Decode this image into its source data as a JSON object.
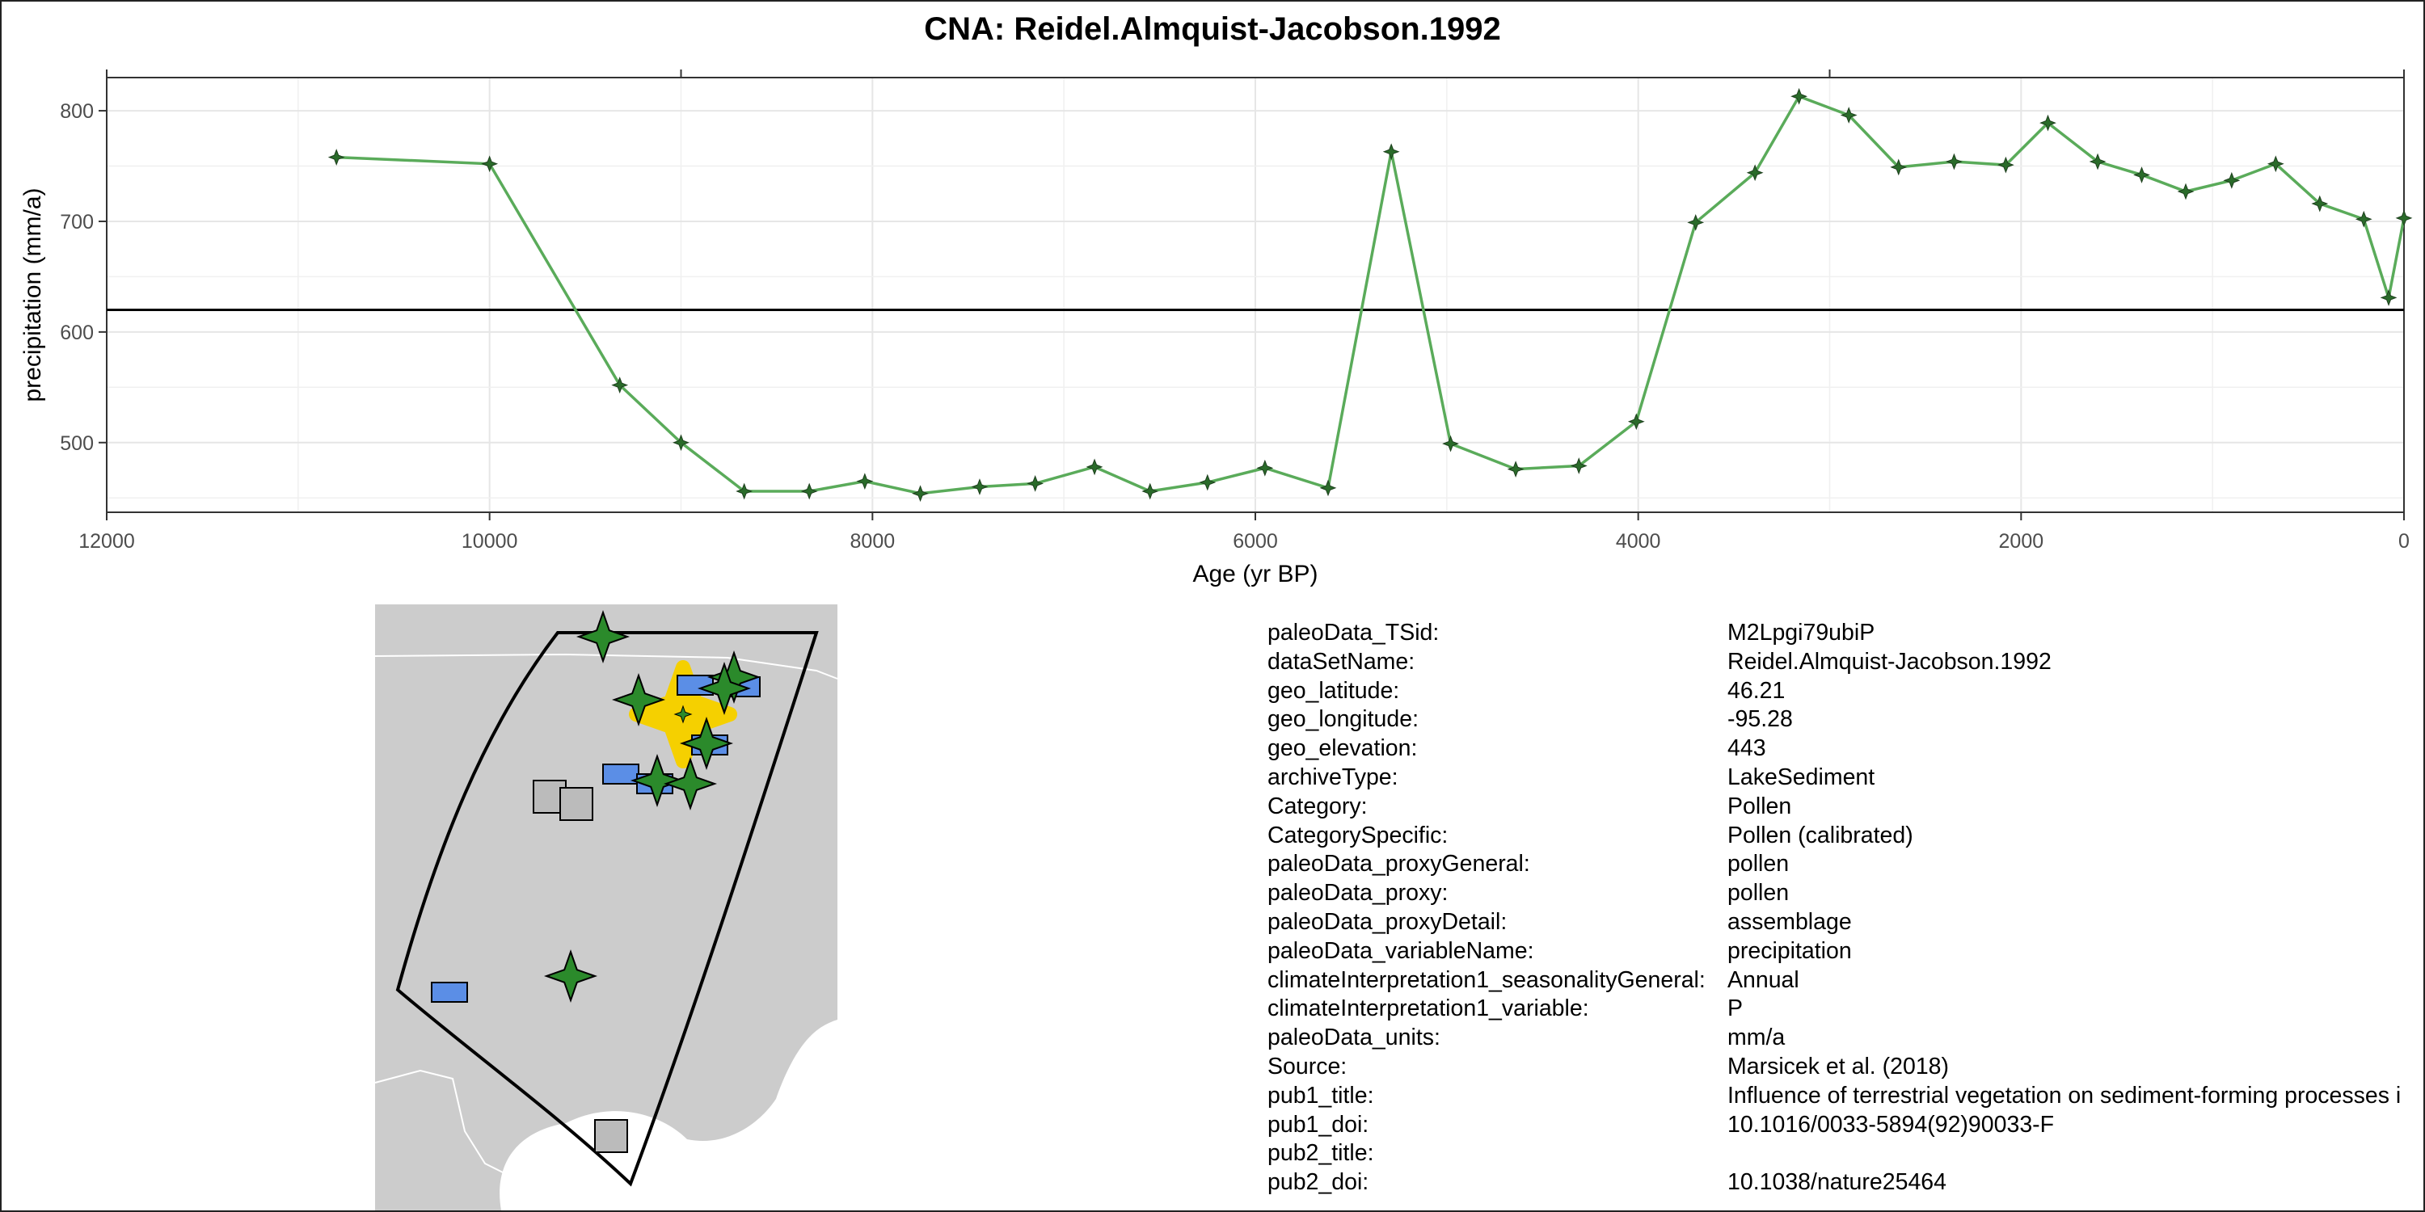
{
  "chart_data": {
    "type": "line",
    "title": "CNA: Reidel.Almquist-Jacobson.1992",
    "xlabel": "Age (yr BP)",
    "ylabel": "precipitation (mm/a)",
    "xlim": [
      12000,
      0
    ],
    "ylim": [
      437,
      830
    ],
    "x_ticks": [
      12000,
      10000,
      8000,
      6000,
      4000,
      2000,
      0
    ],
    "y_ticks": [
      500,
      600,
      700,
      800
    ],
    "reference_line_y": 620,
    "grid": true,
    "series": [
      {
        "color": "#5aab5a",
        "marker_color": "#2a6b2a",
        "x": [
          10800,
          10000,
          9320,
          9000,
          8670,
          8330,
          8040,
          7750,
          7440,
          7150,
          6840,
          6550,
          6250,
          5950,
          5620,
          5290,
          4980,
          4640,
          4310,
          4010,
          3700,
          3390,
          3160,
          2900,
          2640,
          2350,
          2080,
          1860,
          1600,
          1370,
          1140,
          900,
          670,
          440,
          210,
          80,
          0
        ],
        "values": [
          758,
          752,
          552,
          500,
          456,
          456,
          465,
          454,
          460,
          463,
          478,
          456,
          464,
          477,
          459,
          763,
          499,
          476,
          479,
          519,
          699,
          744,
          813,
          796,
          749,
          754,
          751,
          789,
          754,
          742,
          727,
          737,
          752,
          716,
          702,
          631,
          703
        ]
      }
    ]
  },
  "map": {
    "land_color": "#cccccc",
    "water_color": "#ffffff",
    "legend_icons": [
      "star-site-marker",
      "rect-site-marker",
      "square-site-marker",
      "highlight-site-marker"
    ]
  },
  "metadata": {
    "keys": [
      "paleoData_TSid:",
      "dataSetName:",
      "geo_latitude:",
      "geo_longitude:",
      "geo_elevation:",
      "archiveType:",
      "Category:",
      "CategorySpecific:",
      "paleoData_proxyGeneral:",
      "paleoData_proxy:",
      "paleoData_proxyDetail:",
      "paleoData_variableName:",
      "climateInterpretation1_seasonalityGeneral:",
      "climateInterpretation1_variable:",
      "paleoData_units:",
      "Source:",
      "pub1_title:",
      "pub1_doi:",
      "pub2_title:",
      "pub2_doi:"
    ],
    "values": [
      "M2Lpgi79ubiP",
      "Reidel.Almquist-Jacobson.1992",
      "46.21",
      "-95.28",
      "443",
      "LakeSediment",
      "Pollen",
      "Pollen (calibrated)",
      "pollen",
      "pollen",
      "assemblage",
      "precipitation",
      "Annual",
      "P",
      "mm/a",
      "Marsicek et al. (2018)",
      "Influence of terrestrial vegetation on sediment-forming processes i",
      "10.1016/0033-5894(92)90033-F",
      "",
      "10.1038/nature25464"
    ]
  }
}
